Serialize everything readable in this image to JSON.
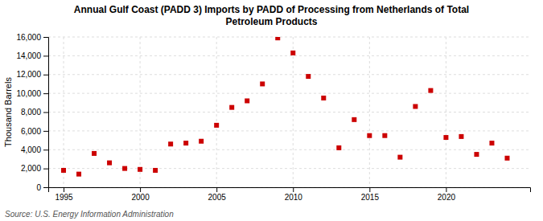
{
  "chart_data": {
    "type": "scatter",
    "title": "Annual Gulf Coast (PADD 3) Imports by PADD of Processing from Netherlands of Total\nPetroleum Products",
    "ylabel": "Thousand Barrels",
    "source": "Source: U.S. Energy Information Administration",
    "color": "#cc0000",
    "marker": "square",
    "grid": true,
    "xlim": [
      1994.0,
      2025.5
    ],
    "ylim": [
      0,
      16000
    ],
    "xticks": [
      1995,
      2000,
      2005,
      2010,
      2015,
      2020
    ],
    "yticks": [
      0,
      {
        "value": 2000,
        "label": "2,000"
      },
      {
        "value": 4000,
        "label": "4,000"
      },
      {
        "value": 6000,
        "label": "6,000"
      },
      {
        "value": 8000,
        "label": "8,000"
      },
      {
        "value": 10000,
        "label": "10,000"
      },
      {
        "value": 12000,
        "label": "12,000"
      },
      {
        "value": 14000,
        "label": "14,000"
      },
      {
        "value": 16000,
        "label": "16,000"
      }
    ],
    "x": [
      1995,
      1996,
      1997,
      1998,
      1999,
      2000,
      2001,
      2002,
      2003,
      2004,
      2005,
      2006,
      2007,
      2008,
      2009,
      2010,
      2011,
      2012,
      2013,
      2014,
      2015,
      2016,
      2017,
      2018,
      2019,
      2020,
      2021,
      2022,
      2023,
      2024
    ],
    "values": [
      1800,
      1400,
      3600,
      2600,
      2000,
      1900,
      1800,
      4600,
      4700,
      4900,
      6600,
      8500,
      9200,
      11000,
      15900,
      14300,
      11800,
      9500,
      4200,
      7200,
      5500,
      5500,
      3200,
      8600,
      10300,
      5300,
      5400,
      3500,
      4700,
      3100
    ]
  }
}
